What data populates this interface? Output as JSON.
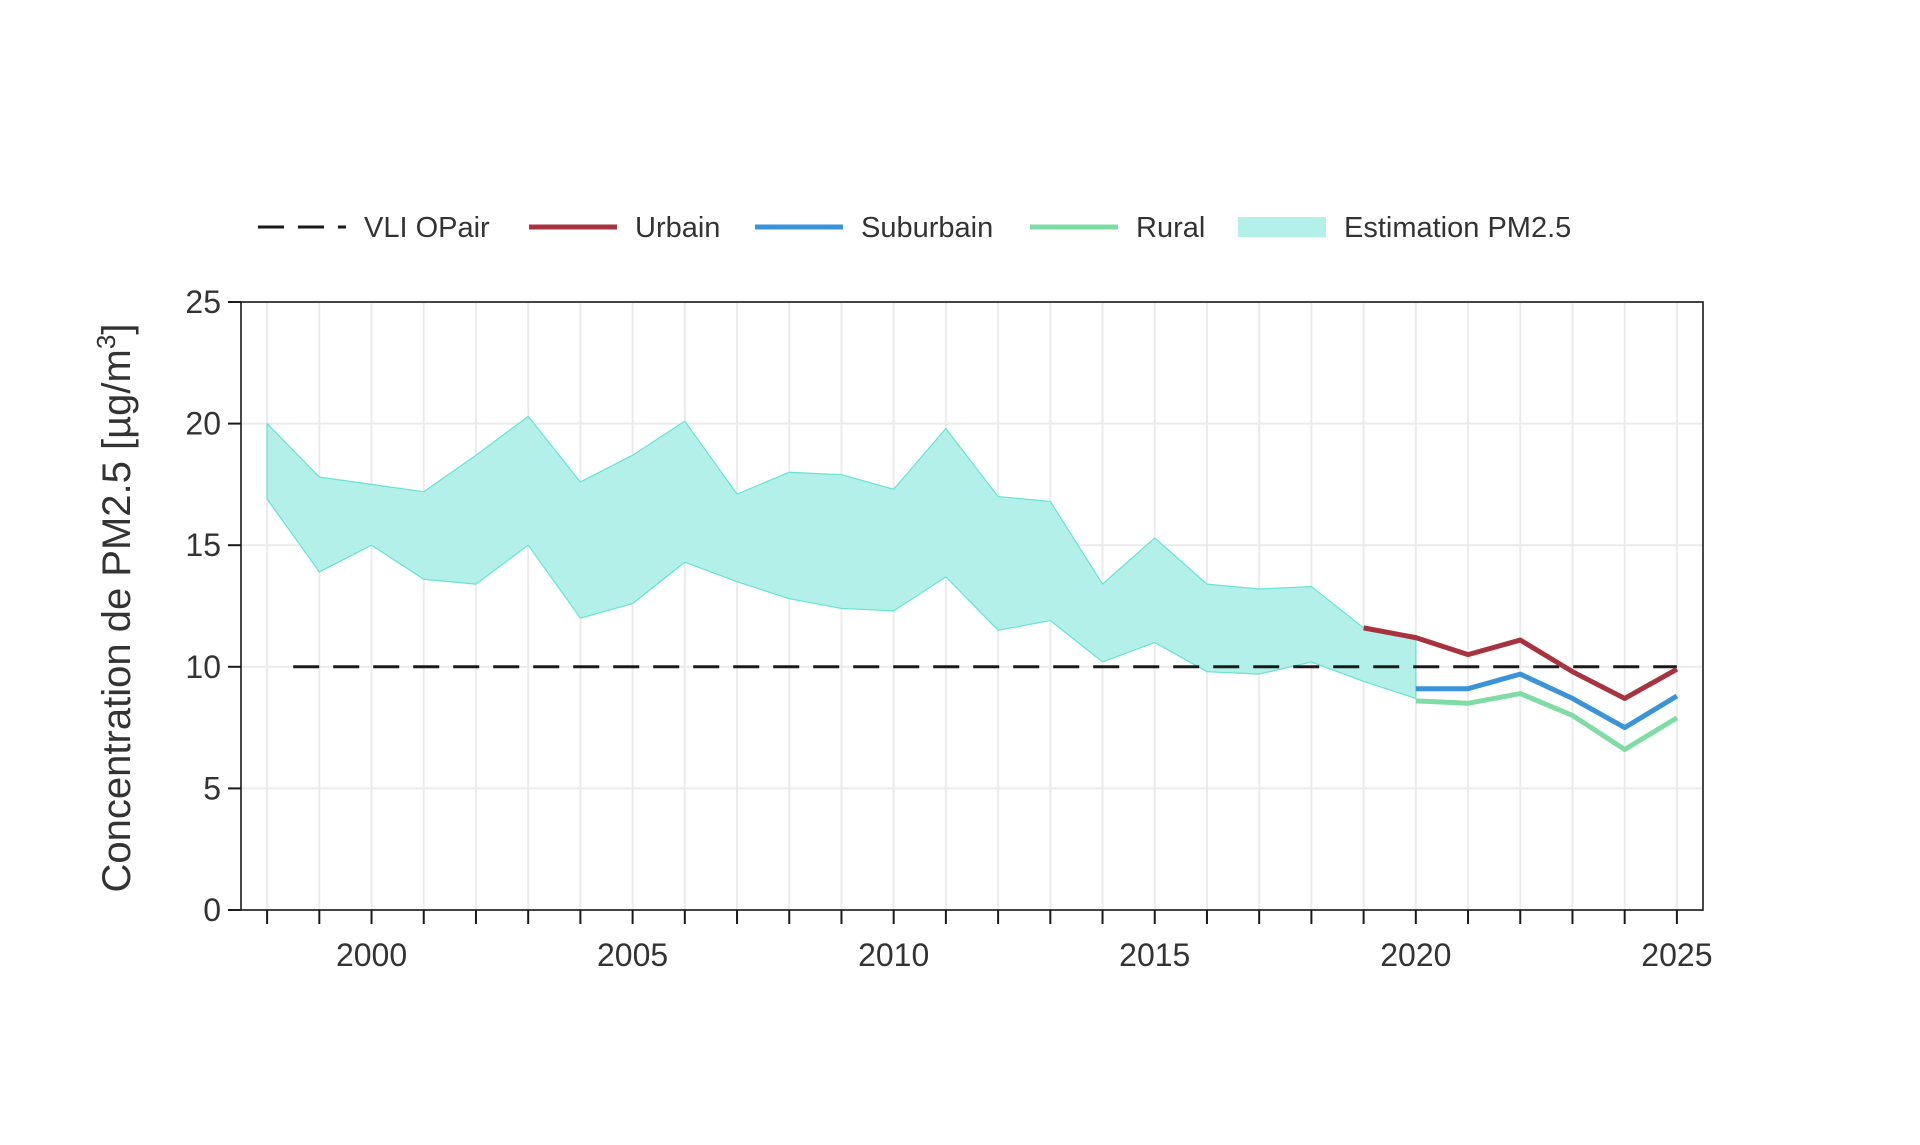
{
  "chart_data": {
    "type": "line",
    "title": "",
    "xlabel": "",
    "ylabel": "Concentration de PM2.5 [µg/m³]",
    "ylabel_parts": {
      "main": "Concentration de PM2.5 [µg/m",
      "sup": "3",
      "end": "]"
    },
    "xlim": [
      1997.5,
      2025.5
    ],
    "ylim": [
      0,
      25
    ],
    "x_ticks": [
      1998,
      1999,
      2000,
      2001,
      2002,
      2003,
      2004,
      2005,
      2006,
      2007,
      2008,
      2009,
      2010,
      2011,
      2012,
      2013,
      2014,
      2015,
      2016,
      2017,
      2018,
      2019,
      2020,
      2021,
      2022,
      2023,
      2024,
      2025
    ],
    "x_tick_labels": [
      "2000",
      "2005",
      "2010",
      "2015",
      "2020",
      "2025"
    ],
    "y_ticks": [
      0,
      5,
      10,
      15,
      20,
      25
    ],
    "y_tick_labels": [
      "0",
      "5",
      "10",
      "15",
      "20",
      "25"
    ],
    "grid": true,
    "legend_position": "top",
    "legend": [
      {
        "label": "VLI OPair",
        "key": "vli",
        "style": "dashed-line",
        "color": "#1a1a1a"
      },
      {
        "label": "Urbain",
        "key": "urbain",
        "style": "line",
        "color": "#a8323e"
      },
      {
        "label": "Suburbain",
        "key": "suburbain",
        "style": "line",
        "color": "#3b93d9"
      },
      {
        "label": "Rural",
        "key": "rural",
        "style": "line",
        "color": "#7fdca4"
      },
      {
        "label": "Estimation PM2.5",
        "key": "band",
        "style": "area",
        "color": "#b3f0ea"
      }
    ],
    "threshold": {
      "name": "VLI OPair",
      "value": 10,
      "x": [
        1998.5,
        2025
      ],
      "color": "#1a1a1a"
    },
    "band": {
      "name": "Estimation PM2.5",
      "x": [
        1998,
        1999,
        2000,
        2001,
        2002,
        2003,
        2004,
        2005,
        2006,
        2007,
        2008,
        2009,
        2010,
        2011,
        2012,
        2013,
        2014,
        2015,
        2016,
        2017,
        2018,
        2019,
        2020
      ],
      "upper": [
        20.0,
        17.8,
        17.5,
        17.2,
        18.7,
        20.3,
        17.6,
        18.7,
        20.1,
        17.1,
        18.0,
        17.9,
        17.3,
        19.8,
        17.0,
        16.8,
        13.4,
        15.3,
        13.4,
        13.2,
        13.3,
        11.6,
        11.1
      ],
      "lower": [
        16.9,
        13.9,
        15.0,
        13.6,
        13.4,
        15.0,
        12.0,
        12.6,
        14.3,
        13.5,
        12.8,
        12.4,
        12.3,
        13.7,
        11.5,
        11.9,
        10.2,
        11.0,
        9.8,
        9.7,
        10.2,
        9.4,
        8.7
      ],
      "fill": "#b3f0ea",
      "stroke": "#66e3d3"
    },
    "series": [
      {
        "name": "Urbain",
        "x": [
          2019,
          2020,
          2021,
          2022,
          2023,
          2024,
          2025
        ],
        "values": [
          11.6,
          11.2,
          10.5,
          11.1,
          9.8,
          8.7,
          9.9
        ],
        "color": "#a8323e"
      },
      {
        "name": "Suburbain",
        "x": [
          2020,
          2021,
          2022,
          2023,
          2024,
          2025
        ],
        "values": [
          9.1,
          9.1,
          9.7,
          8.7,
          7.5,
          8.8
        ],
        "color": "#3b93d9"
      },
      {
        "name": "Rural",
        "x": [
          2020,
          2021,
          2022,
          2023,
          2024,
          2025
        ],
        "values": [
          8.6,
          8.5,
          8.9,
          8.0,
          6.6,
          7.9
        ],
        "color": "#7fdca4"
      }
    ]
  }
}
